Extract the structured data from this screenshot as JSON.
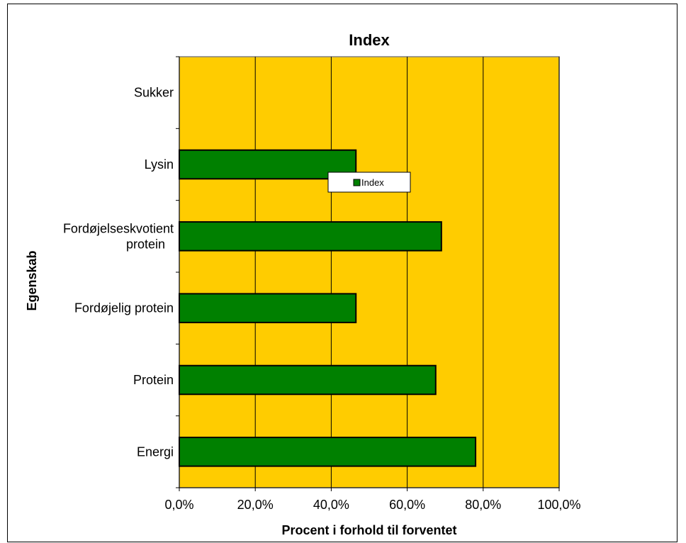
{
  "chart_data": {
    "type": "bar",
    "orientation": "horizontal",
    "title": "Index",
    "xlabel": "Procent i forhold til forventet",
    "ylabel": "Egenskab",
    "categories": [
      "Energi",
      "Protein",
      "Fordøjelig protein",
      "Fordøjelseskvotient protein",
      "Lysin",
      "Sukker"
    ],
    "category_lines": [
      [
        "Energi"
      ],
      [
        "Protein"
      ],
      [
        "Fordøjelig protein"
      ],
      [
        "Fordøjelseskvotient",
        "protein"
      ],
      [
        "Lysin"
      ],
      [
        "Sukker"
      ]
    ],
    "series": [
      {
        "name": "Index",
        "values": [
          0.78,
          0.675,
          0.465,
          0.69,
          0.465,
          0
        ]
      }
    ],
    "xlim": [
      0,
      1
    ],
    "xticks": [
      0,
      0.2,
      0.4,
      0.6,
      0.8,
      1.0
    ],
    "xtick_labels": [
      "0,0%",
      "20,0%",
      "40,0%",
      "60,0%",
      "80,0%",
      "100,0%"
    ],
    "grid": true,
    "legend": "inside-center",
    "colors": {
      "plot_bg": "#FFCC00",
      "bar": "#008000",
      "bar_edge": "#000000",
      "grid": "#000000"
    }
  }
}
